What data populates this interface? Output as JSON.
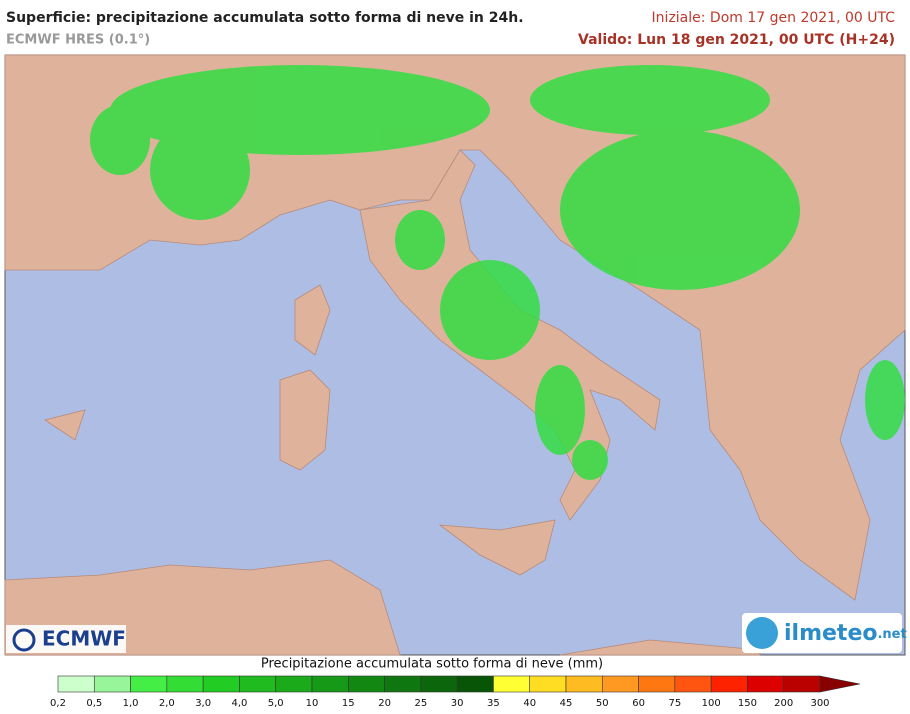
{
  "header": {
    "title": "Superficie: precipitazione accumulata sotto forma di neve in 24h.",
    "model": "ECMWF HRES (0.1°)",
    "init": "Iniziale: Dom 17 gen 2021, 00 UTC",
    "valid": "Valido: Lun 18 gen 2021, 00 UTC (H+24)"
  },
  "logos": {
    "left": "ECMWF",
    "right": "ilmeteo",
    "right_suffix": ".net"
  },
  "legend": {
    "title": "Precipitazione accumulata sotto forma di neve (mm)",
    "labels": [
      "0,2",
      "0,5",
      "1,0",
      "2,0",
      "3,0",
      "4,0",
      "5,0",
      "10",
      "15",
      "20",
      "25",
      "30",
      "35",
      "40",
      "45",
      "50",
      "60",
      "75",
      "100",
      "150",
      "200",
      "300"
    ],
    "colors": [
      "#ccffcc",
      "#99f599",
      "#44ee44",
      "#33dd33",
      "#22cc22",
      "#1fbb1f",
      "#1aaa1a",
      "#169916",
      "#128812",
      "#0f770f",
      "#0c660c",
      "#085508",
      "#ffff33",
      "#ffdd22",
      "#ffbb22",
      "#ff9922",
      "#ff7711",
      "#ff5511",
      "#ff2200",
      "#dd0000",
      "#bb0000"
    ],
    "arrow_color": "#880000"
  }
}
